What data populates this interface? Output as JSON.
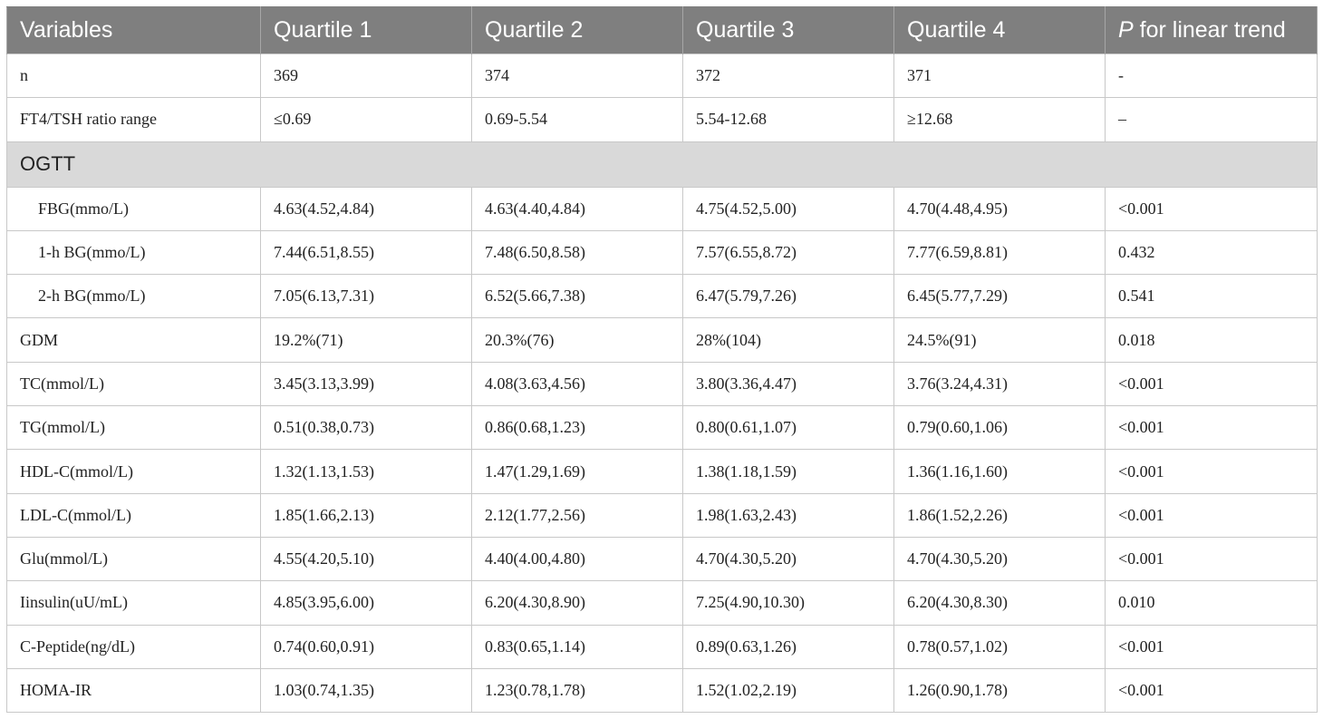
{
  "table": {
    "headers": [
      "Variables",
      "Quartile 1",
      "Quartile 2",
      "Quartile 3",
      "Quartile 4",
      "for linear trend"
    ],
    "header_p_italic": "P",
    "rows_top": [
      [
        "n",
        "369",
        "374",
        "372",
        "371",
        "-"
      ],
      [
        "FT4/TSH ratio range",
        "≤0.69",
        "0.69-5.54",
        "5.54-12.68",
        "≥12.68",
        "–"
      ]
    ],
    "section_label": "OGTT",
    "rows_sub": [
      [
        "FBG(mmo/L)",
        "4.63(4.52,4.84)",
        "4.63(4.40,4.84)",
        "4.75(4.52,5.00)",
        "4.70(4.48,4.95)",
        "<0.001"
      ],
      [
        "1-h BG(mmo/L)",
        "7.44(6.51,8.55)",
        "7.48(6.50,8.58)",
        "7.57(6.55,8.72)",
        "7.77(6.59,8.81)",
        "0.432"
      ],
      [
        "2-h BG(mmo/L)",
        "7.05(6.13,7.31)",
        "6.52(5.66,7.38)",
        "6.47(5.79,7.26)",
        "6.45(5.77,7.29)",
        "0.541"
      ]
    ],
    "rows_main": [
      [
        "GDM",
        "19.2%(71)",
        "20.3%(76)",
        "28%(104)",
        "24.5%(91)",
        "0.018"
      ],
      [
        "TC(mmol/L)",
        "3.45(3.13,3.99)",
        "4.08(3.63,4.56)",
        "3.80(3.36,4.47)",
        "3.76(3.24,4.31)",
        "<0.001"
      ],
      [
        "TG(mmol/L)",
        "0.51(0.38,0.73)",
        "0.86(0.68,1.23)",
        "0.80(0.61,1.07)",
        "0.79(0.60,1.06)",
        "<0.001"
      ],
      [
        "HDL-C(mmol/L)",
        "1.32(1.13,1.53)",
        "1.47(1.29,1.69)",
        "1.38(1.18,1.59)",
        "1.36(1.16,1.60)",
        "<0.001"
      ],
      [
        "LDL-C(mmol/L)",
        "1.85(1.66,2.13)",
        "2.12(1.77,2.56)",
        "1.98(1.63,2.43)",
        "1.86(1.52,2.26)",
        "<0.001"
      ],
      [
        "Glu(mmol/L)",
        "4.55(4.20,5.10)",
        "4.40(4.00,4.80)",
        "4.70(4.30,5.20)",
        "4.70(4.30,5.20)",
        "<0.001"
      ],
      [
        "Iinsulin(uU/mL)",
        "4.85(3.95,6.00)",
        "6.20(4.30,8.90)",
        "7.25(4.90,10.30)",
        "6.20(4.30,8.30)",
        "0.010"
      ],
      [
        "C-Peptide(ng/dL)",
        "0.74(0.60,0.91)",
        "0.83(0.65,1.14)",
        "0.89(0.63,1.26)",
        "0.78(0.57,1.02)",
        "<0.001"
      ],
      [
        "HOMA-IR",
        "1.03(0.74,1.35)",
        "1.23(0.78,1.78)",
        "1.52(1.02,2.19)",
        "1.26(0.90,1.78)",
        "<0.001"
      ]
    ],
    "colors": {
      "header_bg": "#7f7f7f",
      "header_text": "#ffffff",
      "section_bg": "#d9d9d9",
      "border": "#c8c8c8"
    }
  }
}
